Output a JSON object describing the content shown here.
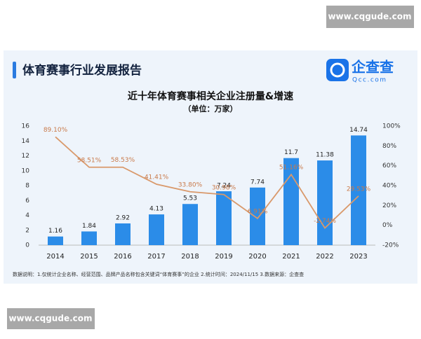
{
  "watermarks": [
    "www.cqgude.com",
    "www.cqgude.com"
  ],
  "header": {
    "title": "体育赛事行业发展报告",
    "logo": "企查查",
    "logo_sub": "Qcc.com"
  },
  "chart_data": {
    "type": "bar",
    "title": "近十年体育赛事相关企业注册量&增速",
    "subtitle": "（单位：万家）",
    "categories": [
      "2014",
      "2015",
      "2016",
      "2017",
      "2018",
      "2019",
      "2020",
      "2021",
      "2022",
      "2023"
    ],
    "series": [
      {
        "type": "bar",
        "color": "#2b8ce8",
        "values": [
          1.16,
          1.84,
          2.92,
          4.13,
          5.53,
          7.24,
          7.74,
          11.7,
          11.38,
          14.74
        ]
      },
      {
        "type": "line",
        "axis": "y2",
        "color": "#d9996b",
        "values": [
          89.1,
          58.51,
          58.53,
          41.41,
          33.8,
          30.98,
          6.91,
          51.16,
          -2.74,
          29.53
        ],
        "value_labels": [
          "89.10%",
          "58.51%",
          "58.53%",
          "41.41%",
          "33.80%",
          "30.98%",
          "6.91%",
          "51.16%",
          "-2.74%",
          "29.53%"
        ]
      }
    ],
    "ylim": [
      0,
      16
    ],
    "yticks": [
      0,
      2,
      4,
      6,
      8,
      10,
      12,
      14,
      16
    ],
    "y2lim": [
      -20,
      100
    ],
    "y2ticks": [
      {
        "value": -20,
        "label": "-20%"
      },
      {
        "value": 0,
        "label": "0%"
      },
      {
        "value": 20,
        "label": "20%"
      },
      {
        "value": 40,
        "label": "40%"
      },
      {
        "value": 60,
        "label": "60%"
      },
      {
        "value": 80,
        "label": "80%"
      },
      {
        "value": 100,
        "label": "100%"
      }
    ],
    "grid": false
  },
  "footnote": "数据说明：1.仅统计企业名称、经营范围、品牌产品名称包含关键词“体育赛事”的企业  2.统计时间：2024/11/15  3.数据来源：企查查"
}
